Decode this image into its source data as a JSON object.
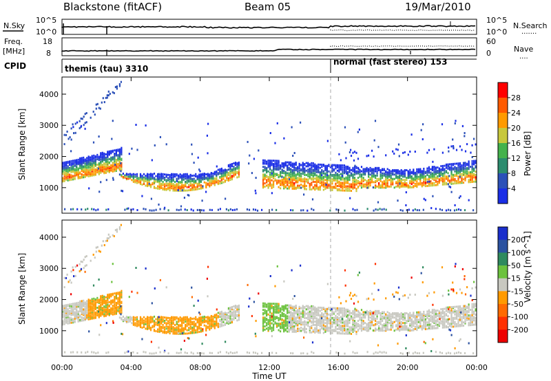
{
  "header": {
    "station": "Blackstone (fitACF)",
    "beam": "Beam 05",
    "date": "19/Mar/2010"
  },
  "noise_panel": {
    "left_label": "N.Sky",
    "right_label": "N.Search",
    "left_ticks": [
      "10^5",
      "10^0"
    ],
    "right_ticks": [
      "10^5",
      "10^0"
    ],
    "right_legend": "......."
  },
  "freq_panel": {
    "left_label_1": "Freq.",
    "left_label_2": "[MHz]",
    "right_label": "Nave",
    "left_ticks": [
      "18",
      "8"
    ],
    "right_ticks": [
      "60",
      "0"
    ],
    "right_legend": "...."
  },
  "cpid_panel": {
    "label": "CPID",
    "modes": [
      {
        "text": "themis (tau) 3310",
        "start_hour": 0.0
      },
      {
        "text": "normal (fast stereo) 153",
        "start_hour": 15.5
      }
    ]
  },
  "chart_data": [
    {
      "type": "heatmap",
      "panel": "power",
      "ylabel": "Slant Range [km]",
      "y_ticks": [
        "1000",
        "2000",
        "3000",
        "4000"
      ],
      "ylim": [
        180,
        4550
      ],
      "x_ticks": [
        "00:00",
        "04:00",
        "08:00",
        "12:00",
        "16:00",
        "20:00",
        "00:00"
      ],
      "xlim_hours": [
        0,
        24
      ],
      "colorbar": {
        "label": "Power [dB]",
        "ticks": [
          "4",
          "8",
          "12",
          "16",
          "20",
          "24",
          "28"
        ],
        "colors": [
          "#1a2ee6",
          "#2b50b8",
          "#2c8c6e",
          "#44b24c",
          "#c8c83c",
          "#ff9a00",
          "#ff5a00",
          "#ff0000"
        ]
      }
    },
    {
      "type": "heatmap",
      "panel": "velocity",
      "ylabel": "Slant Range [km]",
      "y_ticks": [
        "1000",
        "2000",
        "3000",
        "4000"
      ],
      "ylim": [
        180,
        4550
      ],
      "xlabel": "Time UT",
      "x_ticks": [
        "00:00",
        "04:00",
        "08:00",
        "12:00",
        "16:00",
        "20:00",
        "00:00"
      ],
      "xlim_hours": [
        0,
        24
      ],
      "colorbar": {
        "label": "Velocity [m s^-1]",
        "ticks": [
          "200",
          "100",
          "50",
          "15",
          "-15",
          "-50",
          "-100",
          "-200"
        ],
        "colors": [
          "#1a2ecc",
          "#2b52a0",
          "#2f8a5e",
          "#6cc23e",
          "#c8c8c0",
          "#ff9a00",
          "#ff6a00",
          "#ff3000",
          "#ee0000"
        ]
      }
    }
  ]
}
